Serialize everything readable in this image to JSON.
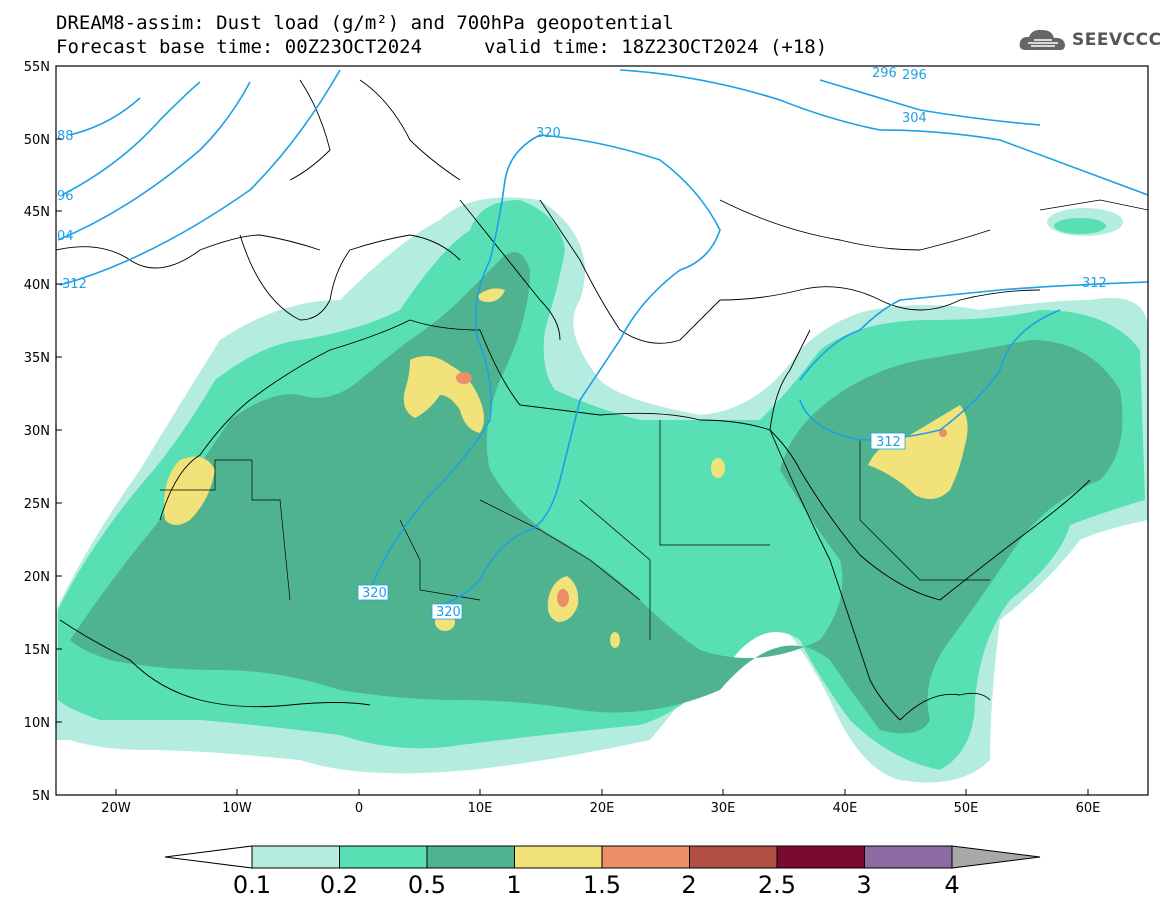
{
  "header": {
    "line1": "DREAM8-assim: Dust load (g/m²) and 700hPa geopotential",
    "line2a": "Forecast base time: 00Z23OCT2024",
    "line2b": "valid time: 18Z23OCT2024 (+18)",
    "logo_text": "SEEVCCC"
  },
  "axes": {
    "lat_labels": [
      "55N",
      "50N",
      "45N",
      "40N",
      "35N",
      "30N",
      "25N",
      "20N",
      "15N",
      "10N",
      "5N"
    ],
    "lon_labels": [
      "20W",
      "10W",
      "0",
      "10E",
      "20E",
      "30E",
      "40E",
      "50E",
      "60E"
    ]
  },
  "contour_labels": [
    "88",
    "96",
    "04",
    "312",
    "320",
    "320",
    "320",
    "312",
    "312",
    "304",
    "296",
    "296"
  ],
  "colorbar": {
    "ticks": [
      "0.1",
      "0.2",
      "0.5",
      "1",
      "1.5",
      "2",
      "2.5",
      "3",
      "4"
    ],
    "colors": [
      "#b4ede0",
      "#58dfb3",
      "#4fb38f",
      "#f2e27a",
      "#eb8e6a",
      "#b04f42",
      "#7a0a2e",
      "#8e6ba3"
    ],
    "under_color": "#ffffff",
    "over_color": "#a8a8a8"
  },
  "contour_color": "#1ea0e6"
}
